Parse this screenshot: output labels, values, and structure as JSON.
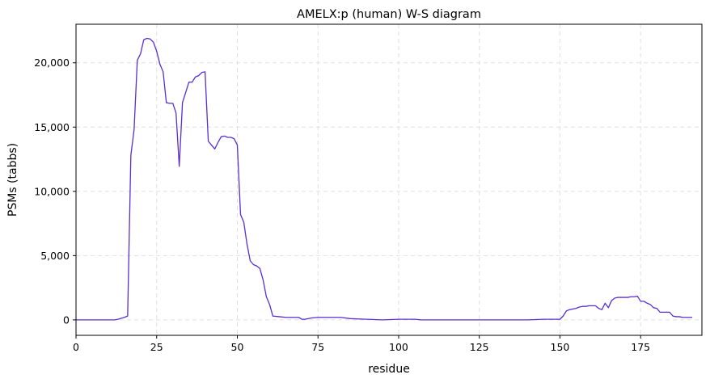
{
  "chart_data": {
    "type": "line",
    "title": "AMELX:p (human) W-S diagram",
    "xlabel": "residue",
    "ylabel": "PSMs (tabbs)",
    "xlim": [
      0,
      194
    ],
    "ylim": [
      -1200,
      23000
    ],
    "xticks": [
      0,
      25,
      50,
      75,
      100,
      125,
      150,
      175
    ],
    "yticks": [
      0,
      5000,
      10000,
      15000,
      20000
    ],
    "ytick_labels": [
      "0",
      "5,000",
      "10,000",
      "15,000",
      "20,000"
    ],
    "grid": true,
    "line_color": "#5a2ed1",
    "series": [
      {
        "x": [
          0,
          5,
          10,
          12,
          13,
          15,
          16,
          17,
          18,
          19,
          20,
          21,
          22,
          23,
          24,
          25,
          26,
          27,
          28,
          29,
          30,
          31,
          32,
          33,
          34,
          35,
          36,
          37,
          38,
          39,
          40,
          41,
          42,
          43,
          44,
          45,
          46,
          47,
          48,
          49,
          50,
          51,
          52,
          53,
          54,
          55,
          56,
          57,
          58,
          59,
          60,
          61,
          63,
          65,
          69,
          70,
          71,
          73,
          75,
          78,
          82,
          85,
          90,
          95,
          100,
          105,
          107,
          110,
          120,
          130,
          140,
          145,
          150,
          151,
          152,
          153,
          154,
          155,
          156,
          157,
          158,
          159,
          160,
          161,
          162,
          163,
          164,
          165,
          166,
          167,
          168,
          169,
          170,
          171,
          172,
          173,
          174,
          175,
          176,
          177,
          178,
          179,
          180,
          181,
          182,
          183,
          184,
          185,
          186,
          187,
          188,
          189,
          190,
          191
        ],
        "y": [
          0,
          0,
          0,
          0,
          50,
          200,
          300,
          12800,
          14800,
          20200,
          20700,
          21800,
          21900,
          21850,
          21600,
          20900,
          19900,
          19300,
          16900,
          16850,
          16850,
          16100,
          11950,
          16900,
          17700,
          18500,
          18500,
          18900,
          19000,
          19250,
          19300,
          13900,
          13600,
          13300,
          13800,
          14250,
          14300,
          14200,
          14200,
          14100,
          13600,
          8200,
          7600,
          5900,
          4600,
          4300,
          4200,
          4000,
          3100,
          1800,
          1200,
          300,
          250,
          200,
          200,
          50,
          50,
          150,
          200,
          200,
          200,
          100,
          50,
          0,
          50,
          50,
          0,
          0,
          0,
          0,
          0,
          50,
          50,
          300,
          700,
          800,
          850,
          900,
          1000,
          1050,
          1050,
          1100,
          1100,
          1100,
          900,
          800,
          1300,
          950,
          1500,
          1700,
          1750,
          1750,
          1750,
          1750,
          1800,
          1800,
          1850,
          1450,
          1450,
          1300,
          1200,
          950,
          900,
          600,
          600,
          600,
          600,
          300,
          250,
          250,
          200,
          200,
          200,
          200
        ]
      }
    ]
  }
}
